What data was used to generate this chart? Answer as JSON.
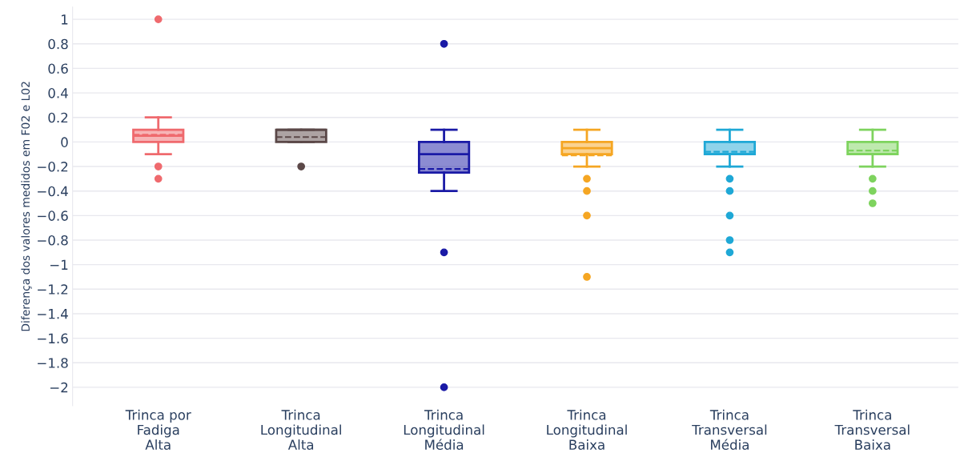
{
  "chart_data": {
    "type": "box",
    "ylabel": "Diferença dos valores medidos em F02 e L02",
    "categories": [
      "Trinca por\nFadiga\nAlta",
      "Trinca\nLongitudinal\nAlta",
      "Trinca\nLongitudinal\nMédia",
      "Trinca\nLongitudinal\nBaixa",
      "Trinca\nTransversal\nMédia",
      "Trinca\nTransversal\nBaixa"
    ],
    "colors": [
      "#ef6a6e",
      "#5b4848",
      "#1a1aa6",
      "#f5a623",
      "#1fa8d6",
      "#7ed35e"
    ],
    "boxes": [
      {
        "low": -0.1,
        "q1": 0,
        "median": 0.05,
        "q3": 0.1,
        "high": 0.2,
        "mean": 0.06,
        "outliers": [
          1,
          -0.2,
          -0.3
        ]
      },
      {
        "low": 0,
        "q1": 0,
        "median": 0.1,
        "q3": 0.1,
        "high": 0.1,
        "mean": 0.04,
        "outliers": [
          -0.2
        ]
      },
      {
        "low": -0.4,
        "q1": -0.25,
        "median": -0.1,
        "q3": 0,
        "high": 0.1,
        "mean": -0.22,
        "outliers": [
          0.8,
          -0.9,
          -2
        ]
      },
      {
        "low": -0.2,
        "q1": -0.1,
        "median": -0.05,
        "q3": 0,
        "high": 0.1,
        "mean": -0.11,
        "outliers": [
          -0.3,
          -0.4,
          -0.6,
          -1.1
        ]
      },
      {
        "low": -0.2,
        "q1": -0.1,
        "median": -0.1,
        "q3": 0,
        "high": 0.1,
        "mean": -0.08,
        "outliers": [
          -0.3,
          -0.4,
          -0.6,
          -0.8,
          -0.9
        ]
      },
      {
        "low": -0.2,
        "q1": -0.1,
        "median": -0.1,
        "q3": 0,
        "high": 0.1,
        "mean": -0.07,
        "outliers": [
          -0.3,
          -0.4,
          -0.5
        ]
      }
    ],
    "ylim": [
      -2.15,
      1.1
    ],
    "yticks": [
      {
        "value": -2,
        "label": "−2"
      },
      {
        "value": -1.8,
        "label": "−1.8"
      },
      {
        "value": -1.6,
        "label": "−1.6"
      },
      {
        "value": -1.4,
        "label": "−1.4"
      },
      {
        "value": -1.2,
        "label": "−1.2"
      },
      {
        "value": -1,
        "label": "−1"
      },
      {
        "value": -0.8,
        "label": "−0.8"
      },
      {
        "value": -0.6,
        "label": "−0.6"
      },
      {
        "value": -0.4,
        "label": "−0.4"
      },
      {
        "value": -0.2,
        "label": "−0.2"
      },
      0,
      0.2,
      0.4,
      0.6,
      0.8,
      1
    ],
    "grid": "y",
    "legend": false
  }
}
